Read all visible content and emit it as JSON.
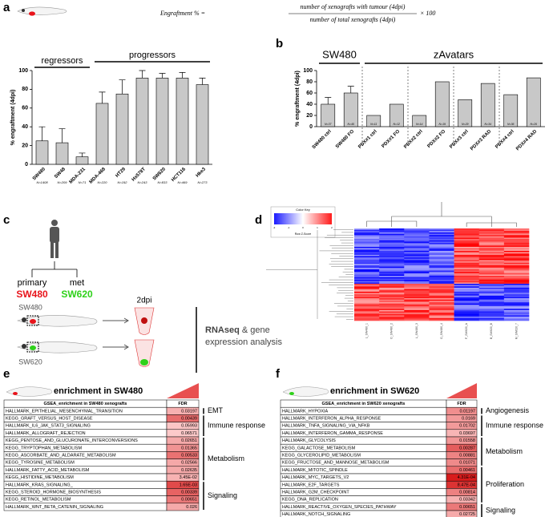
{
  "panel_labels": [
    "a",
    "b",
    "c",
    "d",
    "e",
    "f"
  ],
  "formula": {
    "lhs": "Engraftment % =",
    "numerator": "number of xenografts with tumour (4dpi)",
    "denominator": "number of total xenografts (4dpi)",
    "rhs": "× 100"
  },
  "chart_data": [
    {
      "type": "bar",
      "y_label": "% engraftment (4dpi)",
      "categories": [
        "SW480",
        "SW48",
        "MDA-231",
        "MDA-468",
        "HT29",
        "Hs578T",
        "SW620",
        "HCT116",
        "Hke3"
      ],
      "n_labels": [
        "N=1408",
        "N=209",
        "N=71",
        "N=220",
        "N=192",
        "N=243",
        "N=833",
        "N=469",
        "N=273"
      ],
      "values": [
        25,
        23,
        8,
        65,
        75,
        92,
        92,
        92,
        85
      ],
      "errors": [
        15,
        15,
        4,
        12,
        15,
        8,
        5,
        6,
        7
      ],
      "color": "#c8c8c8",
      "ylim": [
        0,
        100
      ],
      "yticks": [
        0,
        20,
        40,
        60,
        80,
        100
      ],
      "groups": [
        {
          "name": "regressors",
          "color": "#e8141b",
          "categories": [
            "SW480",
            "SW48",
            "MDA-231"
          ]
        },
        {
          "name": "progressors",
          "color": "#2fd11a",
          "categories": [
            "MDA-468",
            "HT29",
            "Hs578T",
            "SW620",
            "HCT116",
            "Hke3"
          ]
        }
      ]
    },
    {
      "type": "bar",
      "y_label": "% engraftment (4dpi)",
      "categories": [
        "SW480 ctrl",
        "SW480 FO",
        "PDX#1 ctrl",
        "PDX#1 FO",
        "PDX#2 ctrl",
        "PDX#2 FO",
        "PDX#3 ctrl",
        "PDX#3 RAD",
        "PDX#4 ctrl",
        "PDX#4 RAD"
      ],
      "n_labels": [
        "N=37",
        "N=45",
        "N=11",
        "N=12",
        "N=14",
        "N=19",
        "N=29",
        "N=34",
        "N=36",
        "N=26"
      ],
      "values": [
        40,
        60,
        20,
        40,
        20,
        80,
        48,
        77,
        57,
        87
      ],
      "errors": [
        12,
        12,
        null,
        null,
        null,
        null,
        null,
        null,
        null,
        null
      ],
      "color": "#c8c8c8",
      "ylim": [
        0,
        100
      ],
      "yticks": [
        0,
        20,
        40,
        60,
        80,
        100
      ],
      "groups": [
        {
          "name": "SW480",
          "color": "#000000",
          "categories": [
            "SW480 ctrl",
            "SW480 FO"
          ]
        },
        {
          "name": "zAvatars",
          "color": "#000000",
          "categories": [
            "PDX#1 ctrl",
            "PDX#1 FO",
            "PDX#2 ctrl",
            "PDX#2 FO",
            "PDX#3 ctrl",
            "PDX#3 RAD",
            "PDX#4 ctrl",
            "PDX#4 RAD"
          ]
        }
      ]
    }
  ],
  "diagram": {
    "primary": "primary",
    "met": "met",
    "primary_line": "SW480",
    "met_line": "SW620",
    "fish_top": "SW480",
    "fish_bottom": "SW620",
    "time": "2dpi",
    "analysis": [
      "RNAseq",
      "& gene",
      "expression analysis"
    ]
  },
  "heatmap": {
    "color_key_title": "Color Key",
    "color_key_subtitle": "Row Z-Score",
    "color_key_ticks": [
      -2,
      -1,
      0,
      1,
      2
    ],
    "samples": [
      "L_SW480_1",
      "O_SW480_2",
      "L_SW480_3",
      "O_SW480_4",
      "P_SW620_A",
      "B_SW620_B",
      "M_SW620_7"
    ]
  },
  "tables": [
    {
      "title": "enrichment in SW480",
      "header": [
        "GSEA_enrichment in SW480 xenografts",
        "FDR"
      ],
      "groups": [
        {
          "label": "EMT",
          "rows": [
            [
              "HALLMARK_EPITHELIAL_MESENCHYMAL_TRANSITION",
              "0.03197"
            ]
          ]
        },
        {
          "label": "Immune response",
          "rows": [
            [
              "KEGG_GRAFT_VERSUS_HOST_DISEASE",
              "0.00439"
            ],
            [
              "HALLMARK_IL6_JAK_STAT3_SIGNALING",
              "0.05993"
            ],
            [
              "HALLMARK_ALLOGRAFT_REJECTION",
              "0.06571"
            ]
          ]
        },
        {
          "label": "Metabolism",
          "rows": [
            [
              "KEGG_PENTOSE_AND_GLUCURONATE_INTERCONVERSIONS",
              "0.02651"
            ],
            [
              "KEGG_TRYPTOPHAN_METABOLISM",
              "0.01365"
            ],
            [
              "KEGG_ASCORBATE_AND_ALDARATE_METABOLISM",
              "0.00533"
            ],
            [
              "KEGG_TYROSINE_METABOLISM",
              "0.02566"
            ],
            [
              "HALLMARK_FATTY_ACID_METABOLISM",
              "0.02635"
            ],
            [
              "KEGG_HISTIDINE_METABOLISM",
              "3.45E-02"
            ]
          ]
        },
        {
          "label": "Signaling",
          "rows": [
            [
              "HALLMARK_KRAS_SIGNALING_",
              "1.65E-03"
            ],
            [
              "KEGG_STEROID_HORMONE_BIOSYNTHESIS",
              "0.00339"
            ],
            [
              "KEGG_RETINOL_METABOLISM",
              "0.00651"
            ],
            [
              "HALLMARK_WNT_BETA_CATENIN_SIGNALING",
              "0.026"
            ]
          ]
        }
      ]
    },
    {
      "title": "enrichment in SW620",
      "header": [
        "GSEA_enrichment in SW620 xenografts",
        "FDR"
      ],
      "groups": [
        {
          "label": "Angiogenesis",
          "rows": [
            [
              "HALLMARK_HYPOXIA",
              "0.01197"
            ]
          ]
        },
        {
          "label": "Immune response",
          "rows": [
            [
              "HALLMARK_INTERFERON_ALPHA_RESPONSE",
              "0.0169"
            ],
            [
              "HALLMARK_TNFA_SIGNALING_VIA_NFKB",
              "0.01702"
            ],
            [
              "HALLMARK_INTERFERON_GAMMA_RESPONSE",
              "0.03697"
            ]
          ]
        },
        {
          "label": "Metabolism",
          "rows": [
            [
              "HALLMARK_GLYCOLYSIS",
              "0.01558"
            ],
            [
              "KEGG_GALACTOSE_METABOLISM",
              "0.00287"
            ],
            [
              "KEGG_GLYCEROLIPID_METABOLISM",
              "0.00881"
            ],
            [
              "KEGG_FRUCTOSE_AND_MANNOSE_METABOLISM",
              "0.01071"
            ]
          ]
        },
        {
          "label": "Proliferation",
          "rows": [
            [
              "HALLMARK_MITOTIC_SPINDLE",
              "0.00461"
            ],
            [
              "HALLMARK_MYC_TARGETS_V2",
              "4.31E-04"
            ],
            [
              "HALLMARK_E2F_TARGETS",
              "8.47E-04"
            ],
            [
              "HALLMARK_G2M_CHECKPOINT",
              "0.00814"
            ],
            [
              "KEGG_DNA_REPLICATION",
              "0.03342"
            ]
          ]
        },
        {
          "label": "Signaling",
          "rows": [
            [
              "HALLMARK_REACTIVE_OXYGEN_SPECIES_PATHWAY",
              "0.00651"
            ],
            [
              "HALLMARK_NOTCH_SIGNALING",
              "0.02725"
            ]
          ]
        }
      ]
    }
  ]
}
